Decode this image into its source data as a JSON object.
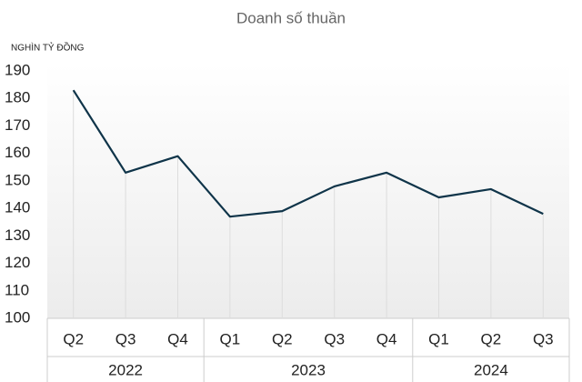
{
  "chart_data": {
    "type": "line",
    "title": "Doanh số thuần",
    "y_label": "NGHÌN TỶ ĐỒNG",
    "groups": [
      {
        "label": "2022",
        "categories": [
          "Q2",
          "Q3",
          "Q4"
        ]
      },
      {
        "label": "2023",
        "categories": [
          "Q1",
          "Q2",
          "Q3",
          "Q4"
        ]
      },
      {
        "label": "2024",
        "categories": [
          "Q1",
          "Q2",
          "Q3"
        ]
      }
    ],
    "series": [
      {
        "color": "#0f3449",
        "values": [
          183,
          153,
          159,
          137,
          139,
          148,
          153,
          144,
          147,
          138
        ]
      }
    ],
    "ylim": [
      100,
      190
    ],
    "yticks": [
      100,
      110,
      120,
      130,
      140,
      150,
      160,
      170,
      180,
      190
    ],
    "drop_lines": true
  }
}
